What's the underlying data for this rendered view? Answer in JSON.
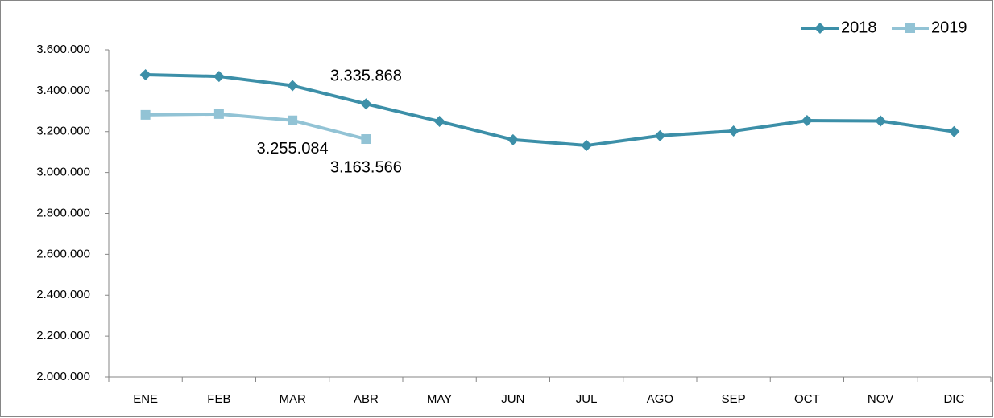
{
  "chart_data": {
    "type": "line",
    "categories": [
      "ENE",
      "FEB",
      "MAR",
      "ABR",
      "MAY",
      "JUN",
      "JUL",
      "AGO",
      "SEP",
      "OCT",
      "NOV",
      "DIC"
    ],
    "series": [
      {
        "name": "2018",
        "color": "#3c8fa8",
        "marker": "diamond",
        "values": [
          3478000,
          3470000,
          3425000,
          3335868,
          3250000,
          3160000,
          3132000,
          3180000,
          3203000,
          3254000,
          3252000,
          3200000
        ],
        "value_labels": [
          null,
          null,
          null,
          "3.335.868",
          null,
          null,
          null,
          null,
          null,
          null,
          null,
          null
        ]
      },
      {
        "name": "2019",
        "color": "#92c3d5",
        "marker": "square",
        "values": [
          3282000,
          3286000,
          3255084,
          3163566,
          null,
          null,
          null,
          null,
          null,
          null,
          null,
          null
        ],
        "value_labels": [
          null,
          null,
          "3.255.084",
          "3.163.566",
          null,
          null,
          null,
          null,
          null,
          null,
          null,
          null
        ]
      }
    ],
    "ylim": [
      2000000,
      3600000
    ],
    "yticks": [
      {
        "value": 2000000,
        "label": "2.000.000"
      },
      {
        "value": 2200000,
        "label": "2.200.000"
      },
      {
        "value": 2400000,
        "label": "2.400.000"
      },
      {
        "value": 2600000,
        "label": "2.600.000"
      },
      {
        "value": 2800000,
        "label": "2.800.000"
      },
      {
        "value": 3000000,
        "label": "3.000.000"
      },
      {
        "value": 3200000,
        "label": "3.200.000"
      },
      {
        "value": 3400000,
        "label": "3.400.000"
      },
      {
        "value": 3600000,
        "label": "3.600.000"
      }
    ],
    "grid": false,
    "legend": "top-right"
  }
}
